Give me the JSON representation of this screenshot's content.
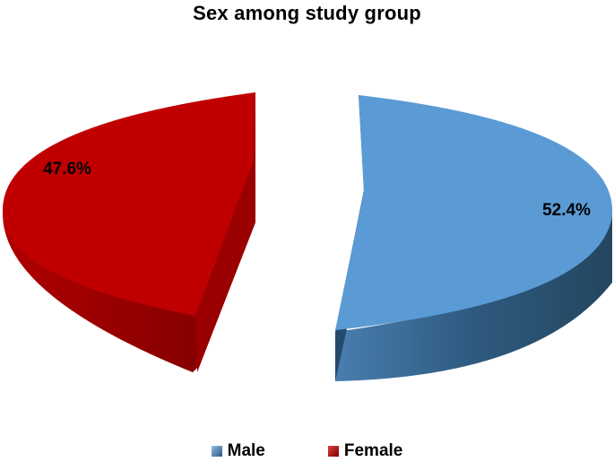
{
  "chart_data": {
    "type": "pie",
    "title": "Sex among study group",
    "slices": [
      {
        "label": "Male",
        "value": 52.4,
        "label_text": "52.4%",
        "color": "#5b9bd5",
        "side_color": "#2e5a7f"
      },
      {
        "label": "Female",
        "value": 47.6,
        "label_text": "47.6%",
        "color": "#c00000",
        "side_color": "#8a0000"
      }
    ],
    "legend": {
      "placement": "bottom",
      "items": [
        "Male",
        "Female"
      ]
    },
    "style": "3d-exploded"
  }
}
